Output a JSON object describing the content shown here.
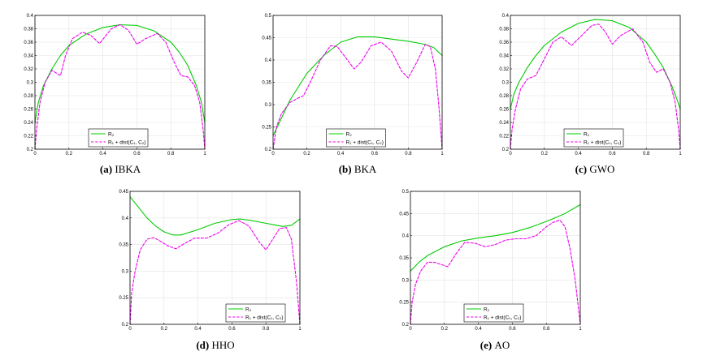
{
  "chart_data": [
    {
      "type": "line",
      "caption_letter": "(a)",
      "caption_text": "IBKA",
      "xlim": [
        0,
        1
      ],
      "ylim": [
        0.2,
        0.4
      ],
      "xticks": [
        0,
        0.2,
        0.4,
        0.6,
        0.8,
        1
      ],
      "xtick_labels": [
        "0",
        "0.2",
        "0.4",
        "0.6",
        "0.8",
        "1"
      ],
      "yticks": [
        0.2,
        0.22,
        0.24,
        0.26,
        0.28,
        0.3,
        0.32,
        0.34,
        0.36,
        0.38,
        0.4
      ],
      "ytick_labels": [
        "0.2",
        "0.22",
        "0.24",
        "0.26",
        "0.28",
        "0.3",
        "0.32",
        "0.34",
        "0.36",
        "0.38",
        "0.4"
      ],
      "grid": true,
      "legend_placement": "bottom-center",
      "series": [
        {
          "name": "R2",
          "legend_label": "R₂",
          "color": "#00cc00",
          "style": "solid",
          "x": [
            0,
            0.02,
            0.05,
            0.1,
            0.15,
            0.2,
            0.3,
            0.4,
            0.5,
            0.6,
            0.7,
            0.8,
            0.85,
            0.9,
            0.95,
            0.98,
            1
          ],
          "y": [
            0.24,
            0.27,
            0.295,
            0.32,
            0.34,
            0.355,
            0.372,
            0.382,
            0.386,
            0.385,
            0.377,
            0.36,
            0.345,
            0.325,
            0.295,
            0.27,
            0.24
          ]
        },
        {
          "name": "R1 + dist(C1, C2)",
          "legend_label": "R₁ + dist(C₁, C₂)",
          "color": "#ee00ee",
          "style": "dashed",
          "x": [
            0,
            0.01,
            0.03,
            0.06,
            0.1,
            0.15,
            0.18,
            0.22,
            0.28,
            0.33,
            0.38,
            0.45,
            0.5,
            0.55,
            0.6,
            0.65,
            0.72,
            0.77,
            0.82,
            0.86,
            0.9,
            0.94,
            0.97,
            0.99,
            1
          ],
          "y": [
            0.2,
            0.23,
            0.27,
            0.3,
            0.318,
            0.31,
            0.34,
            0.365,
            0.375,
            0.37,
            0.358,
            0.38,
            0.386,
            0.378,
            0.357,
            0.365,
            0.373,
            0.36,
            0.33,
            0.31,
            0.308,
            0.295,
            0.27,
            0.23,
            0.2
          ]
        }
      ]
    },
    {
      "type": "line",
      "caption_letter": "(b)",
      "caption_text": "BKA",
      "xlim": [
        0,
        1
      ],
      "ylim": [
        0.2,
        0.5
      ],
      "xticks": [
        0,
        0.2,
        0.4,
        0.6,
        0.8,
        1
      ],
      "xtick_labels": [
        "0",
        "0.2",
        "0.4",
        "0.6",
        "0.8",
        "1"
      ],
      "yticks": [
        0.2,
        0.25,
        0.3,
        0.35,
        0.4,
        0.45,
        0.5
      ],
      "ytick_labels": [
        "0.2",
        "0.25",
        "0.3",
        "0.35",
        "0.4",
        "0.45",
        "0.5"
      ],
      "grid": true,
      "legend_placement": "bottom-center",
      "series": [
        {
          "name": "R2",
          "legend_label": "R₂",
          "color": "#00cc00",
          "style": "solid",
          "x": [
            0,
            0.05,
            0.1,
            0.2,
            0.3,
            0.4,
            0.5,
            0.6,
            0.7,
            0.8,
            0.9,
            0.95,
            1
          ],
          "y": [
            0.23,
            0.27,
            0.31,
            0.37,
            0.41,
            0.44,
            0.452,
            0.452,
            0.447,
            0.442,
            0.435,
            0.428,
            0.41
          ]
        },
        {
          "name": "R1 + dist(C1, C2)",
          "legend_label": "R₁ + dist(C₁, C₂)",
          "color": "#ee00ee",
          "style": "dashed",
          "x": [
            0,
            0.02,
            0.05,
            0.1,
            0.15,
            0.18,
            0.22,
            0.28,
            0.34,
            0.38,
            0.42,
            0.48,
            0.52,
            0.58,
            0.64,
            0.7,
            0.76,
            0.8,
            0.85,
            0.9,
            0.93,
            0.96,
            0.98,
            1
          ],
          "y": [
            0.2,
            0.25,
            0.28,
            0.305,
            0.315,
            0.32,
            0.35,
            0.4,
            0.432,
            0.43,
            0.41,
            0.38,
            0.395,
            0.432,
            0.44,
            0.42,
            0.375,
            0.36,
            0.395,
            0.435,
            0.43,
            0.38,
            0.3,
            0.2
          ]
        }
      ]
    },
    {
      "type": "line",
      "caption_letter": "(c)",
      "caption_text": "GWO",
      "xlim": [
        0,
        1
      ],
      "ylim": [
        0.2,
        0.4
      ],
      "xticks": [
        0,
        0.2,
        0.4,
        0.6,
        0.8,
        1
      ],
      "xtick_labels": [
        "0",
        "0.2",
        "0.4",
        "0.6",
        "0.8",
        "1"
      ],
      "yticks": [
        0.2,
        0.22,
        0.24,
        0.26,
        0.28,
        0.3,
        0.32,
        0.34,
        0.36,
        0.38,
        0.4
      ],
      "ytick_labels": [
        "0.2",
        "0.22",
        "0.24",
        "0.26",
        "0.28",
        "0.3",
        "0.32",
        "0.34",
        "0.36",
        "0.38",
        "0.4"
      ],
      "grid": true,
      "legend_placement": "bottom-center",
      "series": [
        {
          "name": "R2",
          "legend_label": "R₂",
          "color": "#00cc00",
          "style": "solid",
          "x": [
            0,
            0.02,
            0.05,
            0.1,
            0.15,
            0.2,
            0.3,
            0.4,
            0.5,
            0.6,
            0.7,
            0.8,
            0.85,
            0.9,
            0.95,
            0.98,
            1
          ],
          "y": [
            0.26,
            0.282,
            0.3,
            0.322,
            0.34,
            0.355,
            0.375,
            0.388,
            0.394,
            0.392,
            0.382,
            0.36,
            0.342,
            0.322,
            0.295,
            0.275,
            0.26
          ]
        },
        {
          "name": "R1 + dist(C1, C2)",
          "legend_label": "R₁ + dist(C₁, C₂)",
          "color": "#ee00ee",
          "style": "dashed",
          "x": [
            0,
            0.01,
            0.03,
            0.06,
            0.1,
            0.15,
            0.2,
            0.25,
            0.3,
            0.36,
            0.42,
            0.48,
            0.52,
            0.56,
            0.6,
            0.65,
            0.72,
            0.78,
            0.82,
            0.86,
            0.9,
            0.94,
            0.97,
            0.99,
            1
          ],
          "y": [
            0.2,
            0.23,
            0.26,
            0.29,
            0.305,
            0.31,
            0.335,
            0.36,
            0.368,
            0.355,
            0.37,
            0.385,
            0.387,
            0.375,
            0.357,
            0.37,
            0.38,
            0.36,
            0.33,
            0.315,
            0.32,
            0.3,
            0.27,
            0.23,
            0.2
          ]
        }
      ]
    },
    {
      "type": "line",
      "caption_letter": "(d)",
      "caption_text": "HHO",
      "xlim": [
        0,
        1
      ],
      "ylim": [
        0.2,
        0.45
      ],
      "xticks": [
        0,
        0.2,
        0.4,
        0.6,
        0.8,
        1
      ],
      "xtick_labels": [
        "0",
        "0.2",
        "0.4",
        "0.6",
        "0.8",
        "1"
      ],
      "yticks": [
        0.2,
        0.25,
        0.3,
        0.35,
        0.4,
        0.45
      ],
      "ytick_labels": [
        "0.2",
        "0.25",
        "0.3",
        "0.35",
        "0.4",
        "0.45"
      ],
      "grid": true,
      "legend_placement": "bottom-right",
      "series": [
        {
          "name": "R2",
          "legend_label": "R₂",
          "color": "#00cc00",
          "style": "solid",
          "x": [
            0,
            0.05,
            0.1,
            0.15,
            0.2,
            0.25,
            0.3,
            0.4,
            0.5,
            0.6,
            0.65,
            0.7,
            0.8,
            0.85,
            0.9,
            0.95,
            1
          ],
          "y": [
            0.44,
            0.42,
            0.4,
            0.385,
            0.374,
            0.368,
            0.368,
            0.378,
            0.39,
            0.397,
            0.398,
            0.396,
            0.39,
            0.387,
            0.384,
            0.386,
            0.398
          ]
        },
        {
          "name": "R1 + dist(C1, C2)",
          "legend_label": "R₁ + dist(C₁, C₂)",
          "color": "#ee00ee",
          "style": "dashed",
          "x": [
            0,
            0.01,
            0.03,
            0.06,
            0.1,
            0.14,
            0.18,
            0.22,
            0.27,
            0.32,
            0.38,
            0.45,
            0.52,
            0.58,
            0.64,
            0.7,
            0.76,
            0.8,
            0.84,
            0.88,
            0.92,
            0.95,
            0.98,
            1
          ],
          "y": [
            0.2,
            0.26,
            0.3,
            0.34,
            0.36,
            0.363,
            0.356,
            0.348,
            0.342,
            0.352,
            0.362,
            0.362,
            0.372,
            0.387,
            0.395,
            0.385,
            0.355,
            0.34,
            0.36,
            0.38,
            0.382,
            0.36,
            0.28,
            0.2
          ]
        }
      ]
    },
    {
      "type": "line",
      "caption_letter": "(e)",
      "caption_text": "AO",
      "xlim": [
        0,
        1
      ],
      "ylim": [
        0.2,
        0.5
      ],
      "xticks": [
        0,
        0.2,
        0.4,
        0.6,
        0.8,
        1
      ],
      "xtick_labels": [
        "0",
        "0.2",
        "0.4",
        "0.6",
        "0.8",
        "1"
      ],
      "yticks": [
        0.2,
        0.25,
        0.3,
        0.35,
        0.4,
        0.45,
        0.5
      ],
      "ytick_labels": [
        "0.2",
        "0.25",
        "0.3",
        "0.35",
        "0.4",
        "0.45",
        "0.5"
      ],
      "grid": true,
      "legend_placement": "bottom-center",
      "series": [
        {
          "name": "R2",
          "legend_label": "R₂",
          "color": "#00cc00",
          "style": "solid",
          "x": [
            0,
            0.05,
            0.1,
            0.2,
            0.3,
            0.4,
            0.5,
            0.6,
            0.7,
            0.8,
            0.9,
            1
          ],
          "y": [
            0.32,
            0.34,
            0.355,
            0.375,
            0.388,
            0.395,
            0.4,
            0.407,
            0.418,
            0.432,
            0.448,
            0.47
          ]
        },
        {
          "name": "R1 + dist(C1, C2)",
          "legend_label": "R₁ + dist(C₁, C₂)",
          "color": "#ee00ee",
          "style": "dashed",
          "x": [
            0,
            0.01,
            0.03,
            0.06,
            0.1,
            0.14,
            0.18,
            0.22,
            0.27,
            0.32,
            0.38,
            0.44,
            0.5,
            0.56,
            0.62,
            0.68,
            0.74,
            0.8,
            0.84,
            0.88,
            0.91,
            0.94,
            0.97,
            1
          ],
          "y": [
            0.2,
            0.25,
            0.29,
            0.32,
            0.34,
            0.34,
            0.335,
            0.33,
            0.36,
            0.385,
            0.383,
            0.375,
            0.38,
            0.39,
            0.393,
            0.393,
            0.4,
            0.42,
            0.43,
            0.435,
            0.42,
            0.37,
            0.3,
            0.2
          ]
        }
      ]
    }
  ]
}
